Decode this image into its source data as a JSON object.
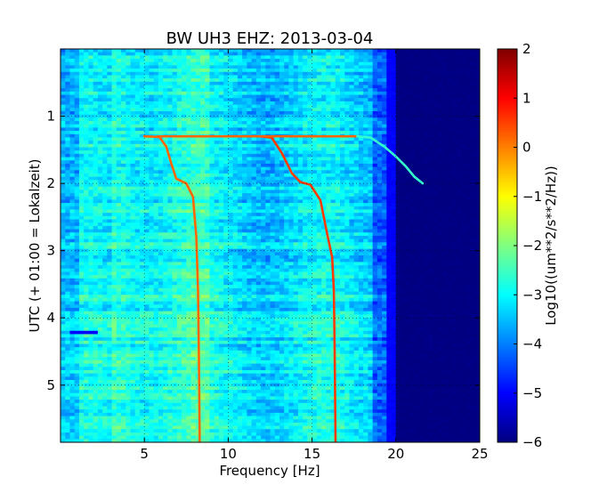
{
  "chart_data": {
    "type": "heatmap",
    "title": "BW UH3 EHZ: 2013-03-04",
    "xlabel": "Frequency [Hz]",
    "ylabel": "UTC (+ 01:00 = Lokalzeit)",
    "xlim": [
      0,
      25
    ],
    "ylim": [
      5.85,
      0.0
    ],
    "x_ticks": [
      "5",
      "10",
      "15",
      "20",
      "25"
    ],
    "y_ticks": [
      "1",
      "2",
      "3",
      "4",
      "5"
    ],
    "colorbar": {
      "label": "Log10((um**2/s**2/Hz))",
      "range": [
        -6,
        2
      ],
      "ticks": [
        "2",
        "1",
        "0",
        "−1",
        "−2",
        "−3",
        "−4",
        "−5",
        "−6"
      ],
      "colormap": "jet"
    },
    "grid": true,
    "tracks": [
      {
        "points": [
          [
            5.0,
            1.3
          ],
          [
            5.9,
            1.31
          ],
          [
            6.3,
            1.45
          ],
          [
            6.6,
            1.7
          ],
          [
            6.9,
            1.93
          ],
          [
            7.5,
            2.0
          ],
          [
            7.9,
            2.2
          ],
          [
            8.1,
            2.8
          ],
          [
            8.2,
            3.6
          ],
          [
            8.25,
            4.5
          ],
          [
            8.3,
            5.85
          ]
        ],
        "level": 0.2
      },
      {
        "points": [
          [
            11.9,
            1.3
          ],
          [
            12.6,
            1.32
          ],
          [
            13.2,
            1.55
          ],
          [
            13.8,
            1.85
          ],
          [
            14.3,
            1.98
          ],
          [
            14.9,
            2.02
          ],
          [
            15.5,
            2.25
          ],
          [
            15.9,
            2.75
          ],
          [
            16.2,
            3.1
          ],
          [
            16.3,
            3.6
          ],
          [
            16.35,
            4.5
          ],
          [
            16.4,
            5.85
          ]
        ],
        "level": 0.55
      },
      {
        "points": [
          [
            5.8,
            1.3
          ],
          [
            17.7,
            1.3
          ]
        ],
        "level": 0.2
      },
      {
        "points": [
          [
            17.7,
            1.3
          ],
          [
            18.5,
            1.32
          ],
          [
            19.3,
            1.45
          ],
          [
            20.0,
            1.6
          ],
          [
            20.6,
            1.75
          ],
          [
            21.1,
            1.9
          ],
          [
            21.6,
            2.0
          ]
        ],
        "level": -2.6
      }
    ]
  }
}
